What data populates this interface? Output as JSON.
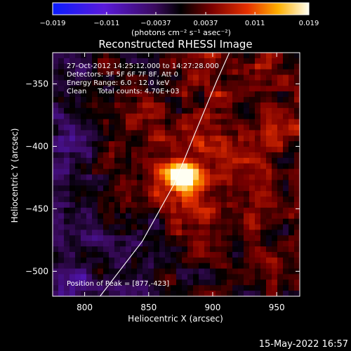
{
  "chart_data": {
    "type": "heatmap",
    "title": "Reconstructed RHESSI Image",
    "xlabel": "Heliocentric X (arcsec)",
    "ylabel": "Heliocentric Y (arcsec)",
    "xlim": [
      775,
      968
    ],
    "ylim": [
      -520,
      -325
    ],
    "x_ticks": [
      800,
      850,
      900,
      950
    ],
    "y_ticks": [
      -350,
      -400,
      -450,
      -500
    ],
    "colorbar": {
      "range": [
        -0.019,
        0.019
      ],
      "ticks": [
        "-0.019",
        "-0.011",
        "-0.0037",
        "0.0037",
        "0.011",
        "0.019"
      ],
      "unit_label": "(photons cm⁻² s⁻¹ asec⁻²)"
    },
    "info_lines": [
      "27-Oct-2012 14:25:12.000 to 14:27:28.000",
      "Detectors: 3F 5F 6F 7F 8F, Att 0",
      "Energy Range: 6.0 - 12.0 keV",
      "Clean     Total counts: 4.70E+03"
    ],
    "peak": {
      "label": "Position of Peak = [877,-423]",
      "x": 877,
      "y": -423,
      "value": 0.019
    },
    "limb_arc": [
      [
        812,
        -520
      ],
      [
        845,
        -476
      ],
      [
        870,
        -430
      ],
      [
        888,
        -385
      ],
      [
        903,
        -348
      ],
      [
        913,
        -325
      ]
    ],
    "timestamp": "15-May-2022 16:57"
  }
}
